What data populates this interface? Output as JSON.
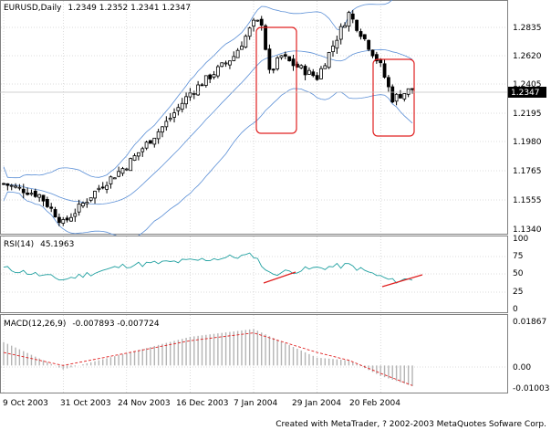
{
  "price_panel": {
    "symbol_timeframe": "EURUSD,Daily",
    "ohlc": "1.2349 1.2352 1.2341 1.2347",
    "y_ticks": [
      "1.2835",
      "1.2620",
      "1.2405",
      "1.2195",
      "1.1980",
      "1.1765",
      "1.1555",
      "1.1340"
    ],
    "current_price": "1.2347"
  },
  "rsi_panel": {
    "label": "RSI(14)",
    "value": "45.1963",
    "y_ticks": [
      "100",
      "75",
      "50",
      "25",
      "0"
    ]
  },
  "macd_panel": {
    "label": "MACD(12,26,9)",
    "values": "-0.007893 -0.007724",
    "y_ticks": [
      "0.01867",
      "0.00",
      "-0.01003"
    ]
  },
  "x_axis": {
    "date_labels": [
      "9 Oct 2003",
      "31 Oct 2003",
      "24 Nov 2003",
      "16 Dec 2003",
      "7 Jan 2004",
      "29 Jan 2004",
      "20 Feb 2004"
    ]
  },
  "footer": {
    "credit": "Created with MetaTrader, ? 2002-2003 MetaQuotes Sofware Corp."
  },
  "colors": {
    "candle": "#000000",
    "bollinger": "#5b8fd6",
    "highlight_box": "#e02020",
    "rsi_line": "#20a0a0",
    "trend_line": "#e02020",
    "macd_histogram": "#b4b4b4",
    "macd_signal": "#e02020",
    "current_price_bg": "#000000"
  },
  "chart_data": [
    {
      "type": "candlestick",
      "title": "EURUSD,Daily",
      "x_range": [
        "9 Oct 2003",
        "27 Feb 2004"
      ],
      "ylim": [
        1.134,
        1.295
      ],
      "overlays": [
        "bollinger-bands"
      ],
      "annotations": [
        "highlight box 7 Jan 2004 to 20 Jan 2004",
        "highlight box 16 Feb 2004 to 27 Feb 2004"
      ],
      "grid": true,
      "values": {
        "anchors_date": [
          "9 Oct 2003",
          "22 Oct 2003",
          "31 Oct 2003",
          "12 Nov 2003",
          "24 Nov 2003",
          "8 Dec 2003",
          "16 Dec 2003",
          "31 Dec 2003",
          "7 Jan 2004",
          "9 Jan 2004",
          "13 Jan 2004",
          "16 Jan 2004",
          "21 Jan 2004",
          "29 Jan 2004",
          "9 Feb 2004",
          "13 Feb 2004",
          "20 Feb 2004",
          "24 Feb 2004",
          "27 Feb 2004"
        ],
        "anchors_close": [
          1.168,
          1.16,
          1.14,
          1.165,
          1.181,
          1.211,
          1.232,
          1.258,
          1.281,
          1.282,
          1.246,
          1.258,
          1.252,
          1.243,
          1.288,
          1.27,
          1.251,
          1.228,
          1.235
        ]
      }
    },
    {
      "type": "line",
      "title": "RSI(14)",
      "ylim": [
        0,
        100
      ],
      "anchors_date": [
        "9 Oct 2003",
        "31 Oct 2003",
        "24 Nov 2003",
        "16 Dec 2003",
        "7 Jan 2004",
        "13 Jan 2004",
        "29 Jan 2004",
        "9 Feb 2004",
        "20 Feb 2004",
        "24 Feb 2004",
        "27 Feb 2004"
      ],
      "anchors_value": [
        60,
        44,
        64,
        70,
        78,
        52,
        60,
        64,
        48,
        42,
        45
      ],
      "annotations": [
        "trend line rising 13 Jan 2004 to 21 Jan 2004",
        "trend line rising 20 Feb 2004 to 2 Mar 2004"
      ]
    },
    {
      "type": "bar",
      "title": "MACD(12,26,9)",
      "ylim": [
        -0.01003,
        0.01867
      ],
      "series": [
        {
          "anchors_date": [
            "9 Oct 2003",
            "31 Oct 2003",
            "16 Dec 2003",
            "7 Jan 2004",
            "29 Jan 2004",
            "9 Feb 2004",
            "20 Feb 2004",
            "27 Feb 2004"
          ],
          "anchors_macd": [
            0.009,
            -0.0015,
            0.011,
            0.014,
            0.003,
            0.002,
            -0.004,
            -0.0079
          ],
          "anchors_signal": [
            0.005,
            0.0,
            0.0095,
            0.0125,
            0.005,
            0.002,
            -0.003,
            -0.0077
          ]
        }
      ]
    }
  ]
}
